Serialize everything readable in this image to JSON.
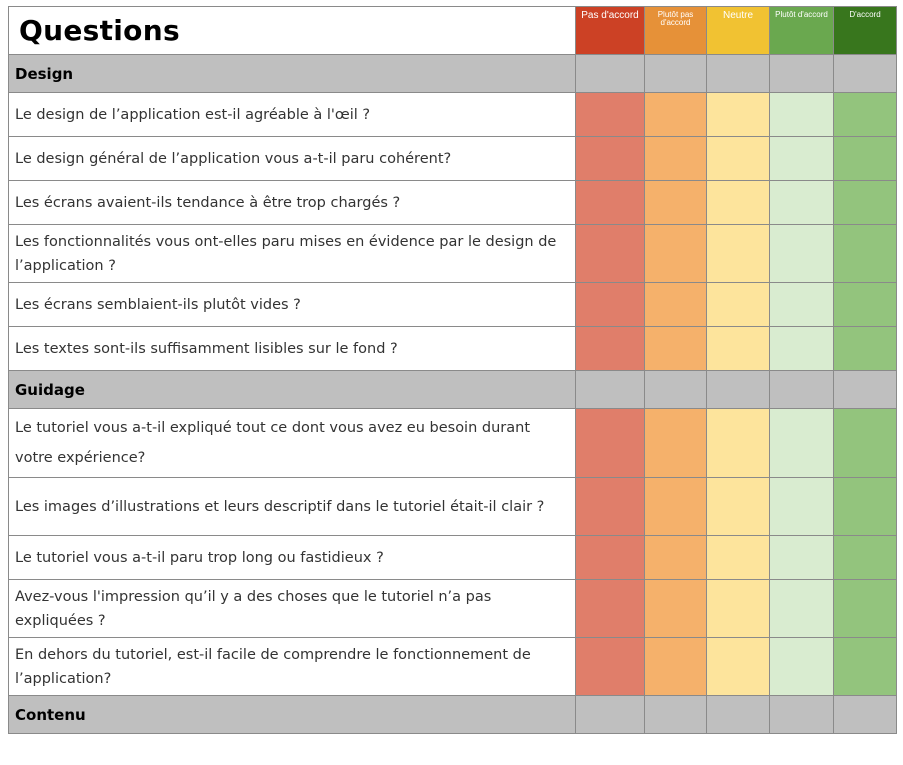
{
  "title": "Questions",
  "scale": [
    {
      "label": "Pas d'accord",
      "header_color": "#cc4125"
    },
    {
      "label": "Plutôt pas d'accord",
      "header_color": "#e69138"
    },
    {
      "label": "Neutre",
      "header_color": "#f1c232"
    },
    {
      "label": "Plutôt d'accord",
      "header_color": "#6aa84f"
    },
    {
      "label": "D'accord",
      "header_color": "#38761d"
    }
  ],
  "response_colors": [
    "#e07e6a",
    "#f5b16b",
    "#fde49c",
    "#d9ecd0",
    "#93c47d"
  ],
  "sections": [
    {
      "name": "Design",
      "questions": [
        "Le design de l’application est-il agréable à l'œil ?",
        "Le design général de l’application vous a-t-il paru cohérent?",
        "Les écrans avaient-ils tendance à être trop chargés ?",
        "Les fonctionnalités vous ont-elles paru mises en évidence par le design de l’application ?",
        "Les écrans semblaient-ils plutôt vides ?",
        "Les textes sont-ils suffisamment lisibles sur le fond ?"
      ]
    },
    {
      "name": "Guidage",
      "questions": [
        "Le tutoriel vous a-t-il expliqué tout ce dont vous avez eu besoin durant votre expérience?",
        "Les images d’illustrations et leurs descriptif dans le tutoriel était-il clair ?",
        "Le tutoriel vous a-t-il paru trop long ou fastidieux ?",
        "Avez-vous l'impression qu’il y a des choses que le tutoriel n’a pas expliquées ?",
        "En dehors du tutoriel, est-il facile de comprendre le fonctionnement de l’application?"
      ]
    },
    {
      "name": "Contenu",
      "questions": []
    }
  ]
}
